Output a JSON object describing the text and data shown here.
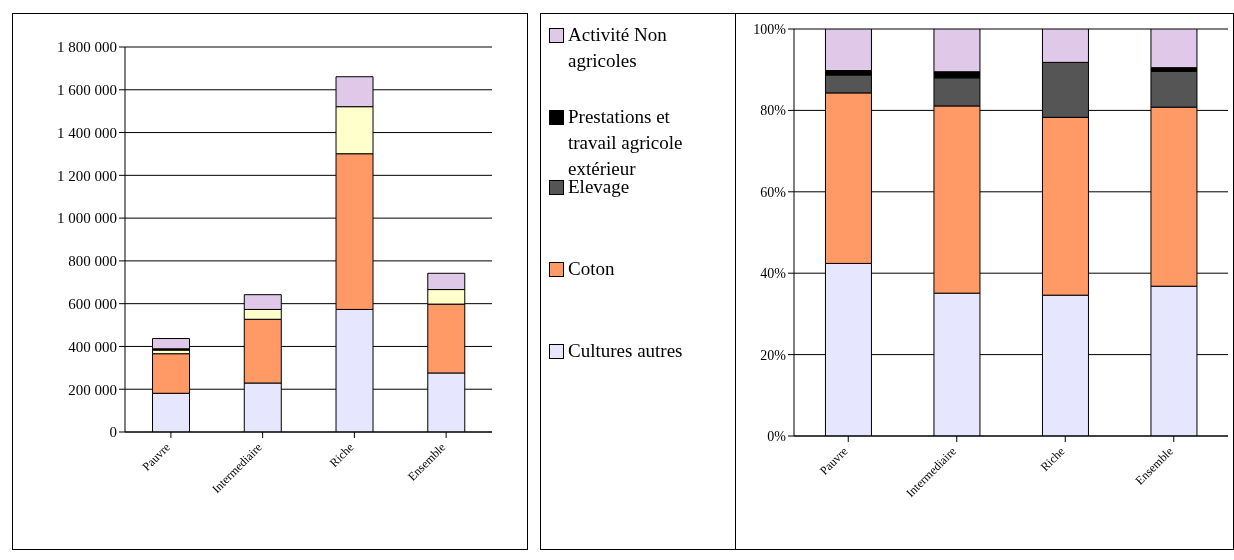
{
  "chart_data": [
    {
      "type": "bar",
      "stacked": true,
      "categories": [
        "Pauvre",
        "Intermediaire",
        "Riche",
        "Ensemble"
      ],
      "ylim": [
        0,
        1800000
      ],
      "yticks": [
        0,
        {
          "value": 200000,
          "label": "200 000"
        },
        {
          "value": 400000,
          "label": "400 000"
        },
        {
          "value": 600000,
          "label": "600 000"
        },
        {
          "value": 800000,
          "label": "800 000"
        },
        {
          "value": 1000000,
          "label": "1 000 000"
        },
        {
          "value": 1200000,
          "label": "1 200 000"
        },
        {
          "value": 1400000,
          "label": "1 400 000"
        },
        {
          "value": 1600000,
          "label": "1 600 000"
        },
        {
          "value": 1800000,
          "label": "1 800 000"
        }
      ],
      "grid": "y",
      "series": [
        {
          "color": "#e6e6ff",
          "values": [
            181000,
            229000,
            573000,
            276000
          ]
        },
        {
          "color": "#ff9966",
          "values": [
            185000,
            298000,
            728000,
            322000
          ]
        },
        {
          "color": "#ffffcc",
          "values": [
            17000,
            46000,
            220000,
            68000
          ]
        },
        {
          "color": "#000000",
          "values": [
            6000,
            null,
            null,
            null
          ]
        },
        {
          "color": "#e0c8e8",
          "values": [
            48000,
            69000,
            140000,
            76000
          ]
        }
      ]
    },
    {
      "type": "bar",
      "stacked": true,
      "categories": [
        "Pauvre",
        "Intermediaire",
        "Riche",
        "Ensemble"
      ],
      "ylim": [
        0,
        100
      ],
      "yticks": [
        {
          "value": 0,
          "label": "0%"
        },
        {
          "value": 20,
          "label": "20%"
        },
        {
          "value": 40,
          "label": "40%"
        },
        {
          "value": 60,
          "label": "60%"
        },
        {
          "value": 80,
          "label": "80%"
        },
        {
          "value": 100,
          "label": "100%"
        }
      ],
      "grid": "y",
      "legend": "left",
      "series": [
        {
          "name": "Cultures autres",
          "color": "#e6e6ff",
          "values": [
            42.4,
            35.1,
            34.6,
            36.8
          ]
        },
        {
          "name": "Coton",
          "color": "#ff9966",
          "values": [
            41.9,
            46.0,
            43.7,
            44.0
          ]
        },
        {
          "name": "Elevage",
          "color": "#555555",
          "values": [
            4.4,
            6.9,
            13.5,
            8.8
          ]
        },
        {
          "name": "Prestations et travail agricole extérieur",
          "color": "#000000",
          "values": [
            1.1,
            1.5,
            0,
            0.9
          ]
        },
        {
          "name": "Activité Non agricoles",
          "color": "#e0c8e8",
          "values": [
            10.2,
            10.5,
            8.2,
            9.5
          ]
        }
      ]
    }
  ]
}
